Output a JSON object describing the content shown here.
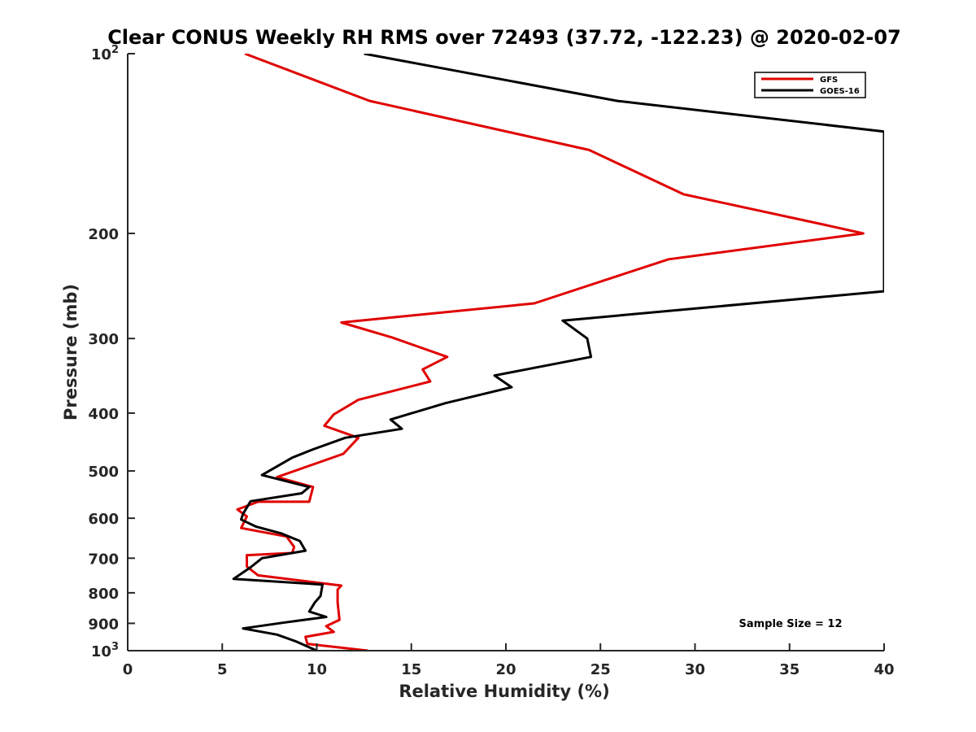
{
  "chart_data": {
    "type": "line",
    "title": "Clear CONUS Weekly RH RMS over 72493 (37.72, -122.23) @ 2020-02-07",
    "xlabel": "Relative Humidity (%)",
    "ylabel": "Pressure (mb)",
    "xlim": [
      0,
      40
    ],
    "ylim": [
      100,
      1000
    ],
    "y_scale": "log",
    "y_reversed": true,
    "x_ticks": [
      {
        "value": 0,
        "label": "0"
      },
      {
        "value": 5,
        "label": "5"
      },
      {
        "value": 10,
        "label": "10"
      },
      {
        "value": 15,
        "label": "15"
      },
      {
        "value": 20,
        "label": "20"
      },
      {
        "value": 25,
        "label": "25"
      },
      {
        "value": 30,
        "label": "30"
      },
      {
        "value": 35,
        "label": "35"
      },
      {
        "value": 40,
        "label": "40"
      }
    ],
    "y_ticks": [
      {
        "value": 100,
        "base": "10",
        "exp": "2"
      },
      {
        "value": 200,
        "label": "200"
      },
      {
        "value": 300,
        "label": "300"
      },
      {
        "value": 400,
        "label": "400"
      },
      {
        "value": 500,
        "label": "500"
      },
      {
        "value": 600,
        "label": "600"
      },
      {
        "value": 700,
        "label": "700"
      },
      {
        "value": 800,
        "label": "800"
      },
      {
        "value": 900,
        "label": "900"
      },
      {
        "value": 1000,
        "base": "10",
        "exp": "3"
      }
    ],
    "grid": false,
    "legend_position": "top-right",
    "annotation": "Sample Size = 12",
    "series": [
      {
        "name": "GFS",
        "color": "#e00000",
        "points": [
          [
            6.2,
            100
          ],
          [
            12.8,
            120
          ],
          [
            24.4,
            145
          ],
          [
            29.4,
            172
          ],
          [
            36.7,
            193
          ],
          [
            38.9,
            200
          ],
          [
            28.6,
            221
          ],
          [
            25.5,
            238
          ],
          [
            21.5,
            262
          ],
          [
            11.3,
            282
          ],
          [
            14.0,
            299
          ],
          [
            16.9,
            322
          ],
          [
            15.6,
            338
          ],
          [
            16.0,
            354
          ],
          [
            12.2,
            380
          ],
          [
            10.9,
            402
          ],
          [
            10.4,
            420
          ],
          [
            12.2,
            440
          ],
          [
            11.4,
            468
          ],
          [
            7.9,
            512
          ],
          [
            9.8,
            532
          ],
          [
            9.6,
            563
          ],
          [
            6.9,
            563
          ],
          [
            5.8,
            580
          ],
          [
            6.3,
            596
          ],
          [
            6.0,
            623
          ],
          [
            8.4,
            644
          ],
          [
            8.8,
            670
          ],
          [
            8.7,
            686
          ],
          [
            6.3,
            692
          ],
          [
            6.3,
            723
          ],
          [
            6.9,
            748
          ],
          [
            11.3,
            778
          ],
          [
            11.1,
            790
          ],
          [
            11.1,
            830
          ],
          [
            11.2,
            888
          ],
          [
            10.5,
            910
          ],
          [
            10.9,
            930
          ],
          [
            9.4,
            948
          ],
          [
            9.5,
            974
          ],
          [
            12.7,
            1000
          ]
        ]
      },
      {
        "name": "GOES-16",
        "color": "#000000",
        "points": [
          [
            12.5,
            100
          ],
          [
            25.9,
            120
          ],
          [
            40.0,
            135
          ],
          [
            40.0,
            250
          ],
          [
            23.0,
            280
          ],
          [
            24.3,
            300
          ],
          [
            24.5,
            322
          ],
          [
            19.4,
            346
          ],
          [
            20.3,
            362
          ],
          [
            16.8,
            385
          ],
          [
            13.9,
            410
          ],
          [
            14.5,
            425
          ],
          [
            11.5,
            440
          ],
          [
            9.8,
            460
          ],
          [
            8.7,
            475
          ],
          [
            7.1,
            508
          ],
          [
            9.6,
            532
          ],
          [
            9.2,
            545
          ],
          [
            6.5,
            562
          ],
          [
            6.1,
            590
          ],
          [
            6.0,
            603
          ],
          [
            6.8,
            620
          ],
          [
            8.1,
            636
          ],
          [
            9.1,
            655
          ],
          [
            9.4,
            680
          ],
          [
            7.1,
            700
          ],
          [
            6.5,
            725
          ],
          [
            5.6,
            758
          ],
          [
            10.3,
            775
          ],
          [
            10.2,
            810
          ],
          [
            9.9,
            830
          ],
          [
            9.6,
            860
          ],
          [
            10.5,
            878
          ],
          [
            8.2,
            898
          ],
          [
            6.1,
            918
          ],
          [
            7.9,
            940
          ],
          [
            8.9,
            965
          ],
          [
            10.0,
            1000
          ]
        ]
      }
    ]
  }
}
